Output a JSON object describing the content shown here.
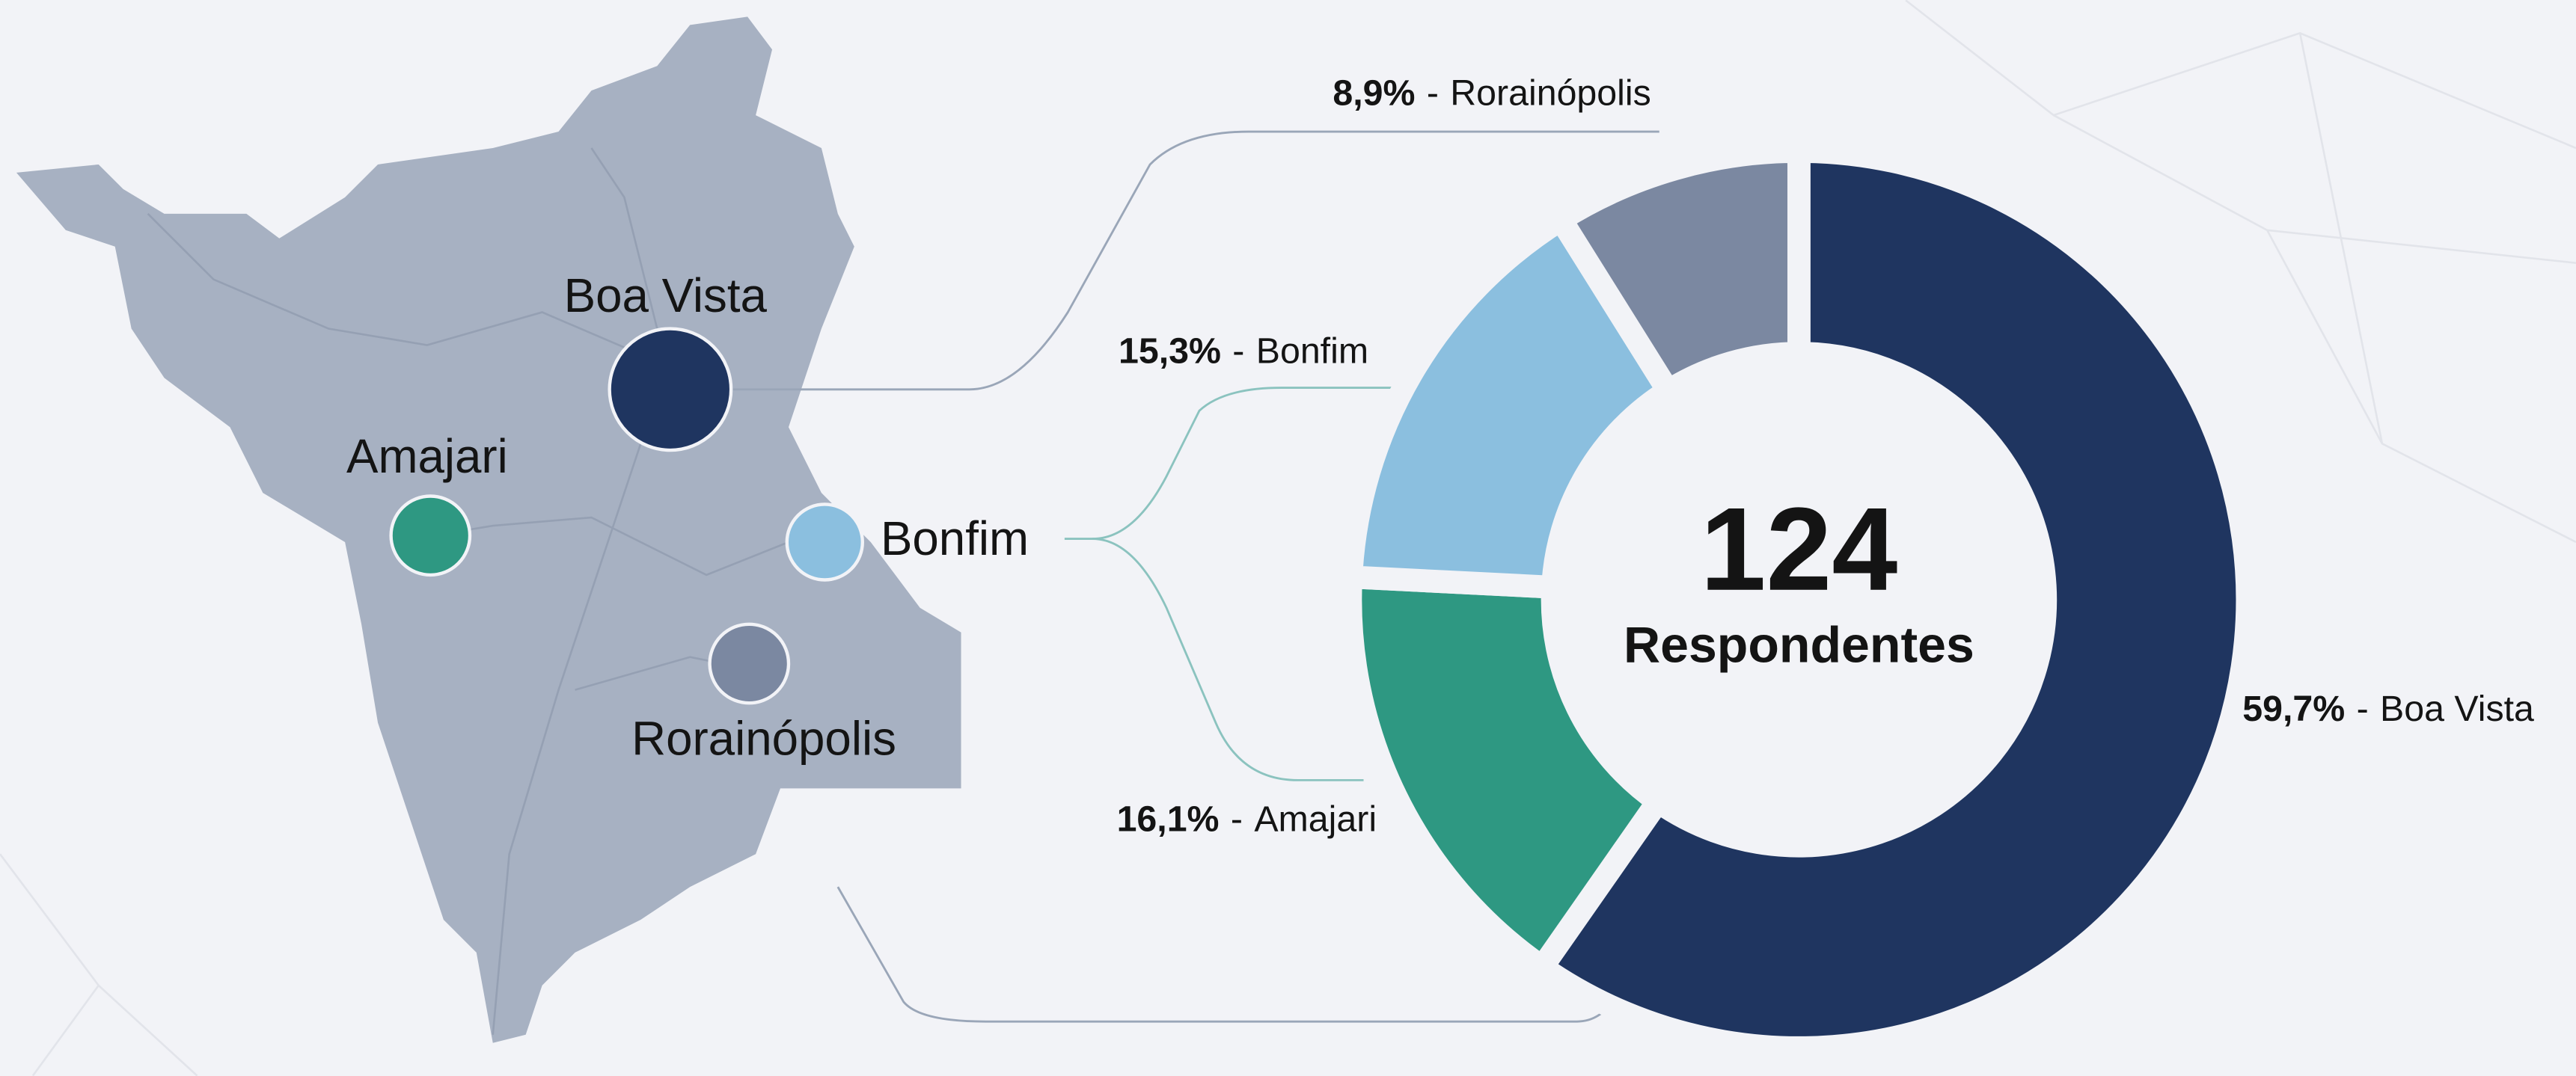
{
  "chart_data": {
    "type": "pie",
    "donut": true,
    "categories": [
      "Boa Vista",
      "Amajari",
      "Bonfim",
      "Rorainópolis"
    ],
    "values": [
      59.7,
      16.1,
      15.3,
      8.9
    ],
    "value_labels": [
      "59,7%",
      "16,1%",
      "15,3%",
      "8,9%"
    ],
    "colors": [
      "#1f3560",
      "#2e9882",
      "#8bbfdf",
      "#7b88a1"
    ],
    "separator": "-",
    "center_value": "124",
    "center_label": "Respondentes"
  }
}
